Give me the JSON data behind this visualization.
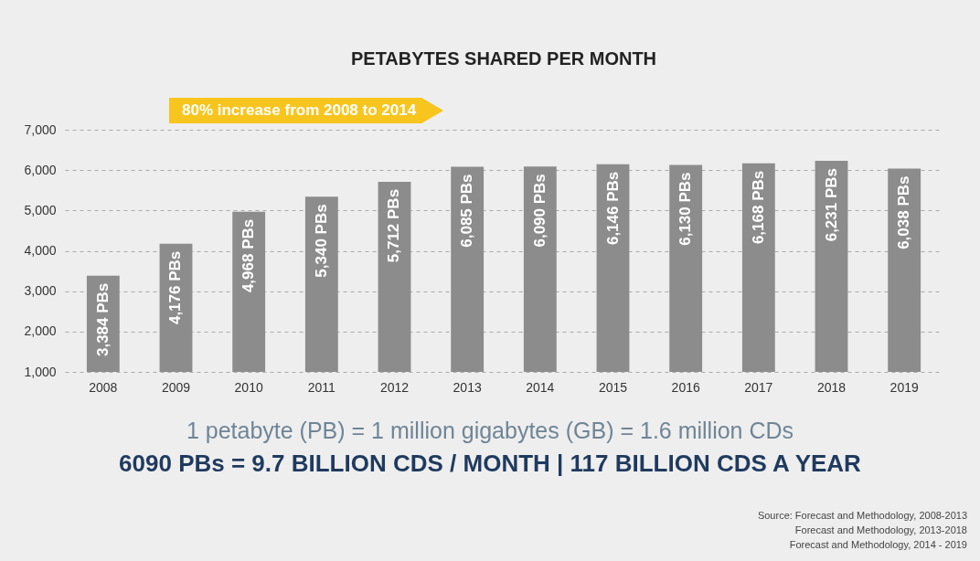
{
  "chart_data": {
    "type": "bar",
    "title": "PETABYTES SHARED PER MONTH",
    "categories": [
      "2008",
      "2009",
      "2010",
      "2011",
      "2012",
      "2013",
      "2014",
      "2015",
      "2016",
      "2017",
      "2018",
      "2019"
    ],
    "values": [
      3384,
      4176,
      4968,
      5340,
      5712,
      6085,
      6090,
      6146,
      6130,
      6168,
      6231,
      6038
    ],
    "value_labels": [
      "3,384 PBs",
      "4,176 PBs",
      "4,968 PBs",
      "5,340 PBs",
      "5,712 PBs",
      "6,085 PBs",
      "6,090 PBs",
      "6,146 PBs",
      "6,130 PBs",
      "6,168 PBs",
      "6,231 PBs",
      "6,038 PBs"
    ],
    "color": "#8c8c8c",
    "ylim": [
      1000,
      7000
    ],
    "yticks": [
      {
        "value": 1000,
        "label": "1,000"
      },
      {
        "value": 2000,
        "label": "2,000"
      },
      {
        "value": 3000,
        "label": "3,000"
      },
      {
        "value": 4000,
        "label": "4,000"
      },
      {
        "value": 5000,
        "label": "5,000"
      },
      {
        "value": 6000,
        "label": "6,000"
      },
      {
        "value": 7000,
        "label": "7,000"
      }
    ],
    "grid": "y",
    "annotations": [
      "80% increase from 2008 to 2014",
      "1 petabyte (PB) = 1 million gigabytes (GB) = 1.6 million CDs",
      "6090 PBs = 9.7 BILLION CDS / MONTH | 117 BILLION CDS A YEAR",
      "Source: Forecast and Methodology, 2008-2013",
      "Forecast and Methodology, 2013-2018",
      "Forecast and Methodology, 2014 - 2019"
    ]
  }
}
